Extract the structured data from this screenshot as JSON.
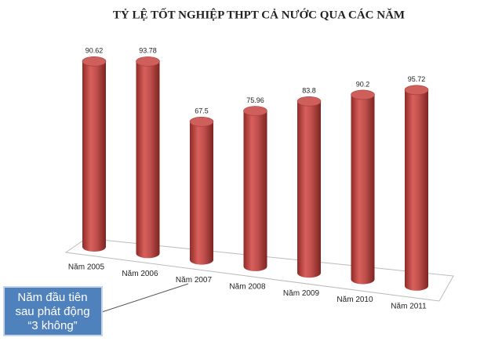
{
  "chart_data": {
    "type": "bar",
    "title": "TỶ LỆ TỐT NGHIỆP THPT CẢ NƯỚC QUA CÁC NĂM",
    "categories": [
      "Năm 2005",
      "Năm 2006",
      "Năm 2007",
      "Năm 2008",
      "Năm 2009",
      "Năm 2010",
      "Năm 2011"
    ],
    "values": [
      90.62,
      93.78,
      67.5,
      75.96,
      83.8,
      90.2,
      95.72
    ],
    "color": "#c0504d",
    "annotation": [
      "Năm đầu tiên",
      "sau phát động",
      "“3 không”"
    ]
  }
}
